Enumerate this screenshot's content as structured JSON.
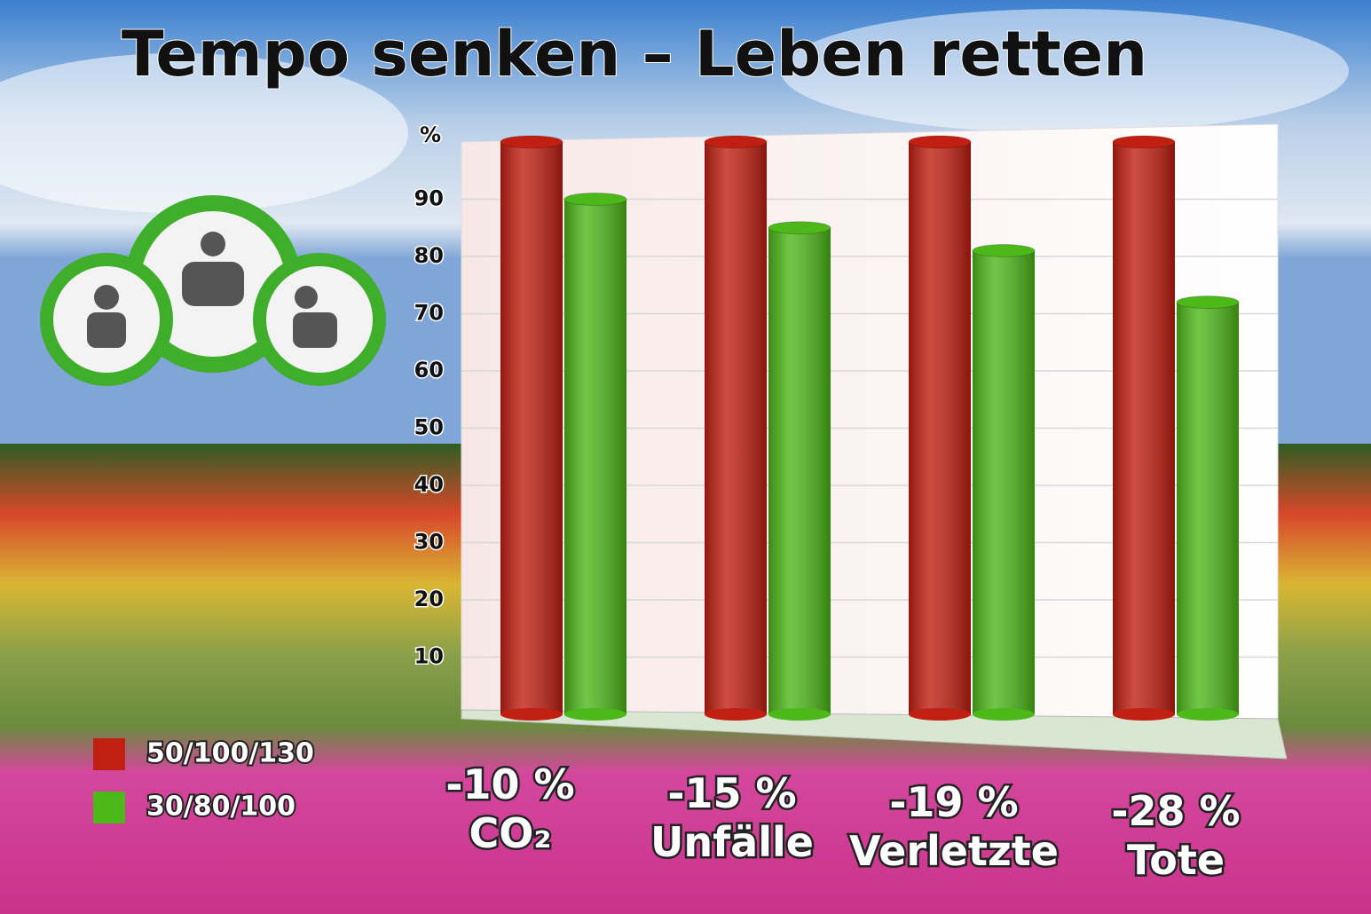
{
  "chart_data": {
    "type": "bar",
    "title": "Tempo senken – Leben retten",
    "y_label": "%",
    "categories": [
      "CO₂",
      "Unfälle",
      "Verletzte",
      "Tote"
    ],
    "annotations": [
      "-10 %",
      "-15 %",
      "-19 %",
      "-28 %"
    ],
    "series": [
      {
        "name": "50/100/130",
        "color": "#c11f12",
        "values": [
          100,
          100,
          100,
          100
        ]
      },
      {
        "name": "30/80/100",
        "color": "#4db81a",
        "values": [
          90,
          85,
          81,
          72
        ]
      }
    ],
    "ylim": [
      0,
      100
    ],
    "yticks": [
      10,
      20,
      30,
      40,
      50,
      60,
      70,
      80,
      90
    ],
    "grid": true,
    "legend": "bottom-left"
  }
}
